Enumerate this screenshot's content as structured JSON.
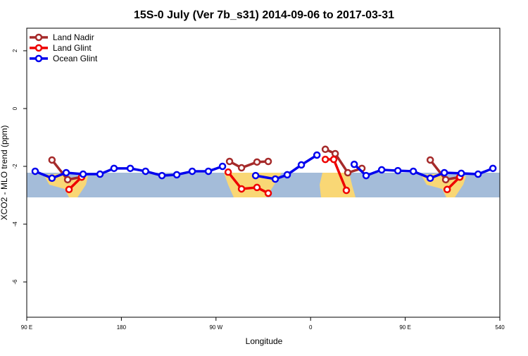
{
  "chart_data": {
    "type": "line",
    "title": "15S-0 July (Ver 7b_s31)   2014-09-06 to 2017-03-31",
    "x_label": "Longitude",
    "y_label": "XCO2 - MLO trend (ppm)",
    "xlim": [
      90,
      540
    ],
    "ylim": [
      -7.22,
      2.78
    ],
    "xticks": [
      {
        "value": 90,
        "label": "90 E"
      },
      180,
      {
        "value": 270,
        "label": "90 W"
      },
      {
        "value": 360,
        "label": "0"
      },
      {
        "value": 450,
        "label": "90 E"
      },
      540
    ],
    "yticks": [
      2,
      0,
      -2,
      -4,
      -6
    ],
    "legend": "top-left",
    "series": [
      {
        "name": "Land Nadir",
        "color": "#a52a2a",
        "x": [
          114,
          128.9,
          142.2,
          210,
          282.9,
          294.3,
          309,
          319.7,
          350,
          374,
          383.4,
          395.4,
          408.8,
          440,
          473.8,
          488.5,
          501.9
        ],
        "values": [
          -1.78,
          -2.46,
          -2.37,
          null,
          -1.83,
          -2.05,
          -1.85,
          -1.83,
          null,
          -1.41,
          -1.56,
          -2.22,
          -2.07,
          null,
          -1.78,
          -2.46,
          -2.37
        ]
      },
      {
        "name": "Land Glint",
        "color": "#ee0000",
        "x": [
          130.2,
          142.2,
          210,
          281.6,
          294.3,
          309,
          319.7,
          350,
          374,
          382,
          394,
          440,
          489.9,
          501.9
        ],
        "values": [
          -2.8,
          -2.37,
          null,
          -2.2,
          -2.78,
          -2.73,
          -2.93,
          null,
          -1.76,
          -1.76,
          -2.83,
          null,
          -2.8,
          -2.37
        ]
      },
      {
        "name": "Ocean Glint",
        "color": "#0000ee",
        "x": [
          98,
          114,
          127.5,
          143.6,
          159.7,
          173,
          188.5,
          203,
          218.6,
          232.7,
          247.4,
          262.8,
          276.2,
          292,
          307.7,
          326.4,
          337.8,
          351.2,
          366,
          384,
          401.5,
          412.8,
          427.6,
          443,
          457.7,
          473.8,
          487.2,
          503.3,
          519.3,
          533.4
        ],
        "values": [
          -2.17,
          -2.41,
          -2.22,
          -2.27,
          -2.27,
          -2.07,
          -2.07,
          -2.17,
          -2.32,
          -2.29,
          -2.17,
          -2.17,
          -2.0,
          null,
          -2.32,
          -2.44,
          -2.29,
          -1.95,
          -1.61,
          null,
          -1.93,
          -2.32,
          -2.12,
          -2.15,
          -2.17,
          -2.41,
          -2.22,
          -2.24,
          -2.27,
          -2.07
        ]
      }
    ]
  }
}
